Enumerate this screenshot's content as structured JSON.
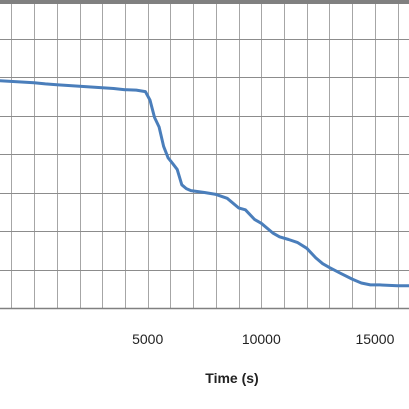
{
  "chart_data": {
    "type": "line",
    "title": "",
    "xlabel": "Time (s)",
    "ylabel": "",
    "xlim": [
      -1500,
      16500
    ],
    "ylim": [
      0,
      8
    ],
    "grid": true,
    "x_ticks": [
      5000,
      10000,
      15000
    ],
    "x_tick_labels": [
      "5000",
      "10000",
      "15000"
    ],
    "colors": {
      "line": "#4A7EBB",
      "grid": "#a6a6a6",
      "frame": "#808080"
    },
    "series": [
      {
        "x": [
          -1500,
          0,
          500,
          1000,
          1500,
          2000,
          2500,
          3000,
          3500,
          4000,
          4500,
          4900,
          5100,
          5300,
          5500,
          5700,
          5900,
          6100,
          6300,
          6500,
          6700,
          6900,
          7500,
          8000,
          8500,
          9000,
          9300,
          9700,
          10000,
          10500,
          10800,
          11200,
          11600,
          12000,
          12400,
          12700,
          13000,
          13500,
          14000,
          14400,
          14800,
          15200,
          16000,
          16500
        ],
        "y": [
          5.9,
          5.85,
          5.82,
          5.8,
          5.78,
          5.76,
          5.74,
          5.72,
          5.7,
          5.67,
          5.66,
          5.62,
          5.4,
          4.95,
          4.7,
          4.2,
          3.9,
          3.75,
          3.6,
          3.2,
          3.1,
          3.05,
          3.0,
          2.95,
          2.85,
          2.6,
          2.55,
          2.3,
          2.2,
          1.95,
          1.85,
          1.78,
          1.7,
          1.55,
          1.3,
          1.15,
          1.05,
          0.9,
          0.75,
          0.65,
          0.6,
          0.6,
          0.58,
          0.58
        ]
      }
    ]
  }
}
